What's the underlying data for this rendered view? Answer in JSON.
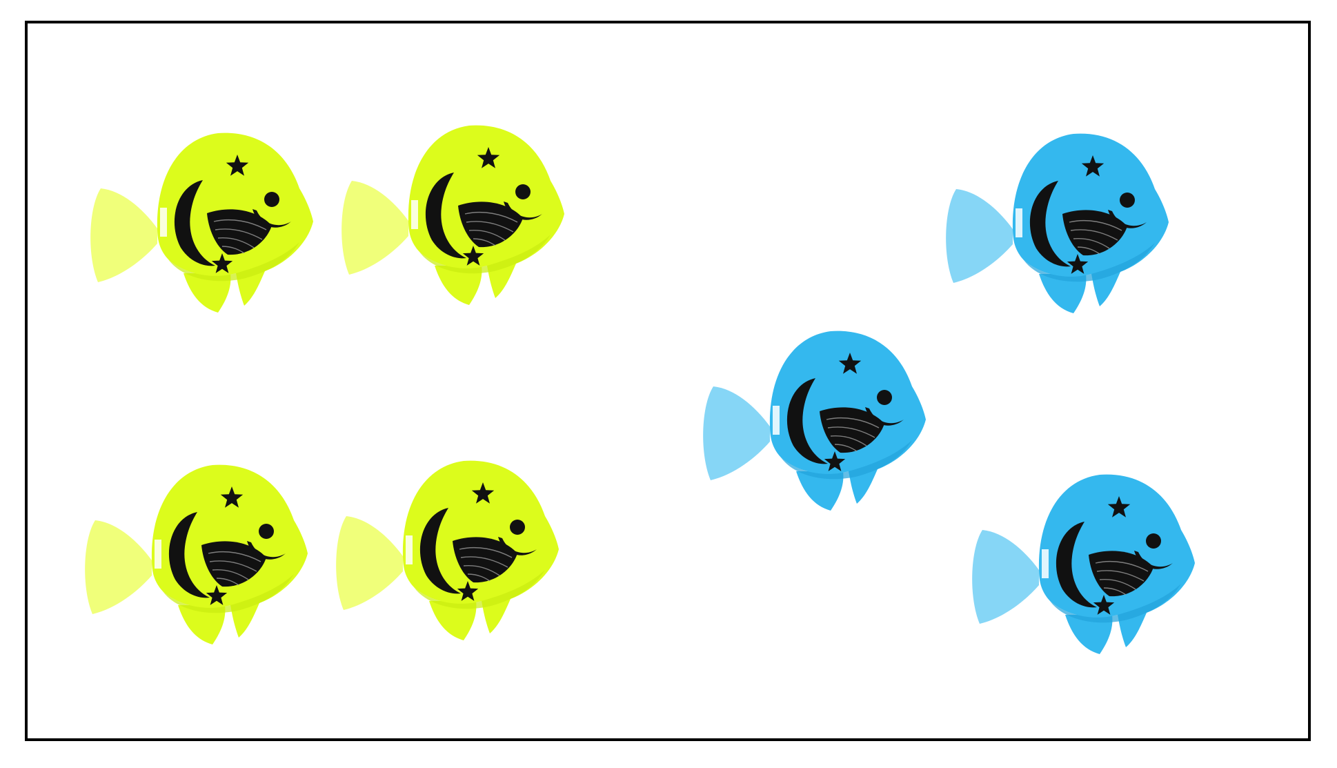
{
  "palette": {
    "yellow": {
      "body": "#dcfc1c",
      "shade": "#c9ec10",
      "light": "#f0ff7a"
    },
    "blue": {
      "body": "#34b8ee",
      "shade": "#22a3dc",
      "light": "#86d6f6"
    },
    "print": "#111111",
    "frame": "#000000"
  },
  "groups": [
    {
      "name": "yellow-fish-group",
      "color": "yellow",
      "count": 4
    },
    {
      "name": "blue-fish-group",
      "color": "blue",
      "count": 3
    }
  ]
}
